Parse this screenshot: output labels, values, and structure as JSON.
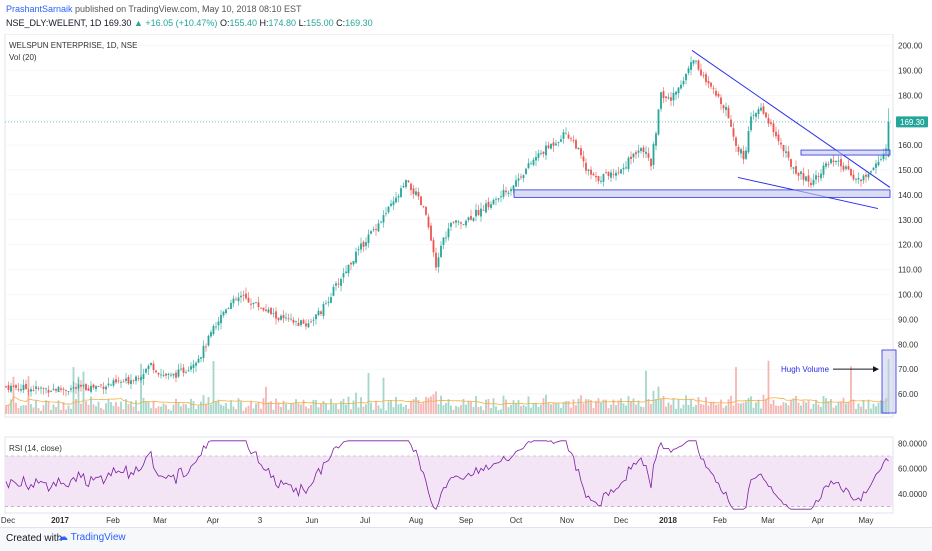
{
  "header": {
    "author": "PrashantSarnaik",
    "published": " published on TradingView.com, May 10, 2018 08:10 EST",
    "symbol": "NSE_DLY:WELENT, 1D",
    "last": "169.30",
    "change": "+16.05 (+10.47%)",
    "open_label": "O:",
    "open": "155.40",
    "high_label": "H:",
    "high": "174.80",
    "low_label": "L:",
    "low": "155.00",
    "close_label": "C:",
    "close": "169.30"
  },
  "colors": {
    "up": "#26a69a",
    "down": "#ef5350",
    "trendline": "#2a2eec",
    "zone_fill": "#c5cae9",
    "rsi_fill": "#f3e5f5",
    "rsi_line": "#7b1fa2",
    "ma_line": "#f5b041",
    "price_badge": "#26a69a"
  },
  "chart_data": [
    {
      "type": "candlestick",
      "title": "WELSPUN ENTERPRISE, 1D, NSE",
      "volume_label": "Vol (20)",
      "x_tick_labels": [
        "Dec",
        "2017",
        "Feb",
        "Mar",
        "Apr",
        "3",
        "Jun",
        "Jul",
        "Aug",
        "Sep",
        "Oct",
        "Nov",
        "Dec",
        "2018",
        "Feb",
        "Mar",
        "Apr",
        "May"
      ],
      "y_tick_labels": [
        "200.00",
        "190.00",
        "180.00",
        "170.00",
        "160.00",
        "150.00",
        "140.00",
        "130.00",
        "120.00",
        "110.00",
        "100.00",
        "90.00",
        "80.00",
        "70.00",
        "60.00"
      ],
      "ylim": [
        52,
        203
      ],
      "last_price_label": "169.30",
      "close_trajectory": [
        [
          0,
          63
        ],
        [
          30,
          62
        ],
        [
          60,
          62
        ],
        [
          90,
          63
        ],
        [
          120,
          65
        ],
        [
          135,
          68
        ],
        [
          145,
          72
        ],
        [
          155,
          68
        ],
        [
          165,
          67
        ],
        [
          180,
          70
        ],
        [
          195,
          76
        ],
        [
          210,
          88
        ],
        [
          220,
          95
        ],
        [
          235,
          99
        ],
        [
          255,
          95
        ],
        [
          270,
          91
        ],
        [
          285,
          89
        ],
        [
          300,
          88
        ],
        [
          315,
          93
        ],
        [
          325,
          100
        ],
        [
          340,
          110
        ],
        [
          360,
          122
        ],
        [
          375,
          130
        ],
        [
          390,
          138
        ],
        [
          400,
          145
        ],
        [
          410,
          140
        ],
        [
          420,
          132
        ],
        [
          430,
          110
        ],
        [
          435,
          120
        ],
        [
          445,
          128
        ],
        [
          460,
          130
        ],
        [
          475,
          134
        ],
        [
          490,
          138
        ],
        [
          505,
          143
        ],
        [
          515,
          148
        ],
        [
          530,
          155
        ],
        [
          545,
          160
        ],
        [
          560,
          165
        ],
        [
          570,
          160
        ],
        [
          580,
          150
        ],
        [
          590,
          146
        ],
        [
          600,
          148
        ],
        [
          615,
          150
        ],
        [
          625,
          155
        ],
        [
          635,
          160
        ],
        [
          645,
          152
        ],
        [
          655,
          180
        ],
        [
          665,
          178
        ],
        [
          675,
          185
        ],
        [
          688,
          195
        ],
        [
          700,
          185
        ],
        [
          710,
          180
        ],
        [
          720,
          175
        ],
        [
          730,
          160
        ],
        [
          738,
          155
        ],
        [
          745,
          170
        ],
        [
          755,
          175
        ],
        [
          765,
          168
        ],
        [
          775,
          160
        ],
        [
          785,
          152
        ],
        [
          795,
          148
        ],
        [
          805,
          145
        ],
        [
          815,
          150
        ],
        [
          825,
          153
        ],
        [
          835,
          152
        ],
        [
          845,
          148
        ],
        [
          855,
          146
        ],
        [
          862,
          148
        ],
        [
          868,
          152
        ],
        [
          875,
          153
        ],
        [
          880,
          160
        ],
        [
          884,
          169.3
        ]
      ],
      "annotations": [
        {
          "kind": "trendline",
          "from": [
            686,
            198
          ],
          "to": [
            884,
            143
          ]
        },
        {
          "kind": "trendline",
          "from": [
            732,
            147
          ],
          "to": [
            872,
            134.5
          ]
        },
        {
          "kind": "zone",
          "x_range": [
            508,
            884
          ],
          "y_range": [
            139,
            142
          ]
        },
        {
          "kind": "zone",
          "x_range": [
            795,
            884
          ],
          "y_range": [
            156,
            158
          ]
        },
        {
          "kind": "text",
          "text": "Hugh Volume",
          "at": [
            775,
            70
          ]
        }
      ]
    },
    {
      "type": "line",
      "title": "RSI (14, close)",
      "y_tick_labels": [
        "80.0000",
        "60.0000",
        "40.0000"
      ],
      "ylim": [
        25,
        85
      ],
      "band": [
        30,
        70
      ]
    }
  ]
}
